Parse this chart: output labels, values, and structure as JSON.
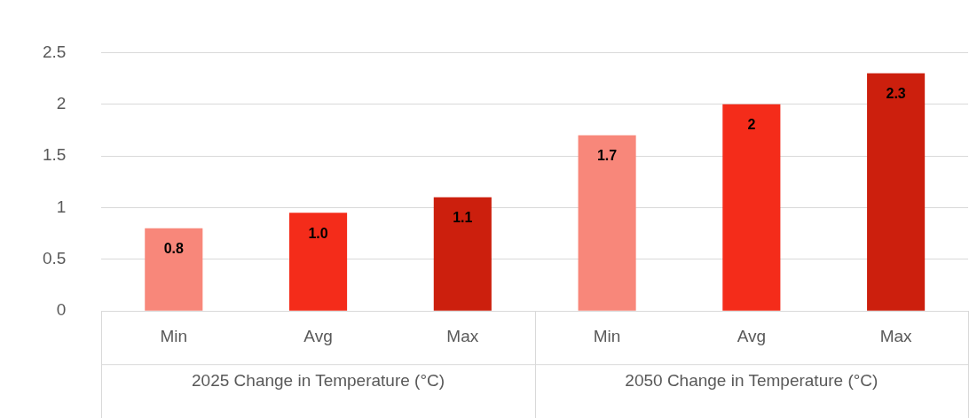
{
  "chart_data": {
    "type": "bar",
    "categories": [
      "Min",
      "Avg",
      "Max",
      "Min",
      "Avg",
      "Max"
    ],
    "values": [
      0.8,
      0.95,
      1.1,
      1.7,
      2.0,
      2.3
    ],
    "colors": [
      "#f8877a",
      "#f42c1a",
      "#cc1f0d",
      "#f8877a",
      "#f42c1a",
      "#cc1f0d"
    ],
    "value_labels": [
      "0.8",
      "1.0",
      "1.1",
      "1.7",
      "2",
      "2.3"
    ],
    "ylim": [
      0,
      2.5
    ],
    "yticks": [
      0,
      0.5,
      1,
      1.5,
      2,
      2.5
    ],
    "grid": "y",
    "legend": false,
    "annotations": [
      "2025 Change in Temperature (°C)",
      "2050 Change in Temperature (°C)"
    ]
  }
}
